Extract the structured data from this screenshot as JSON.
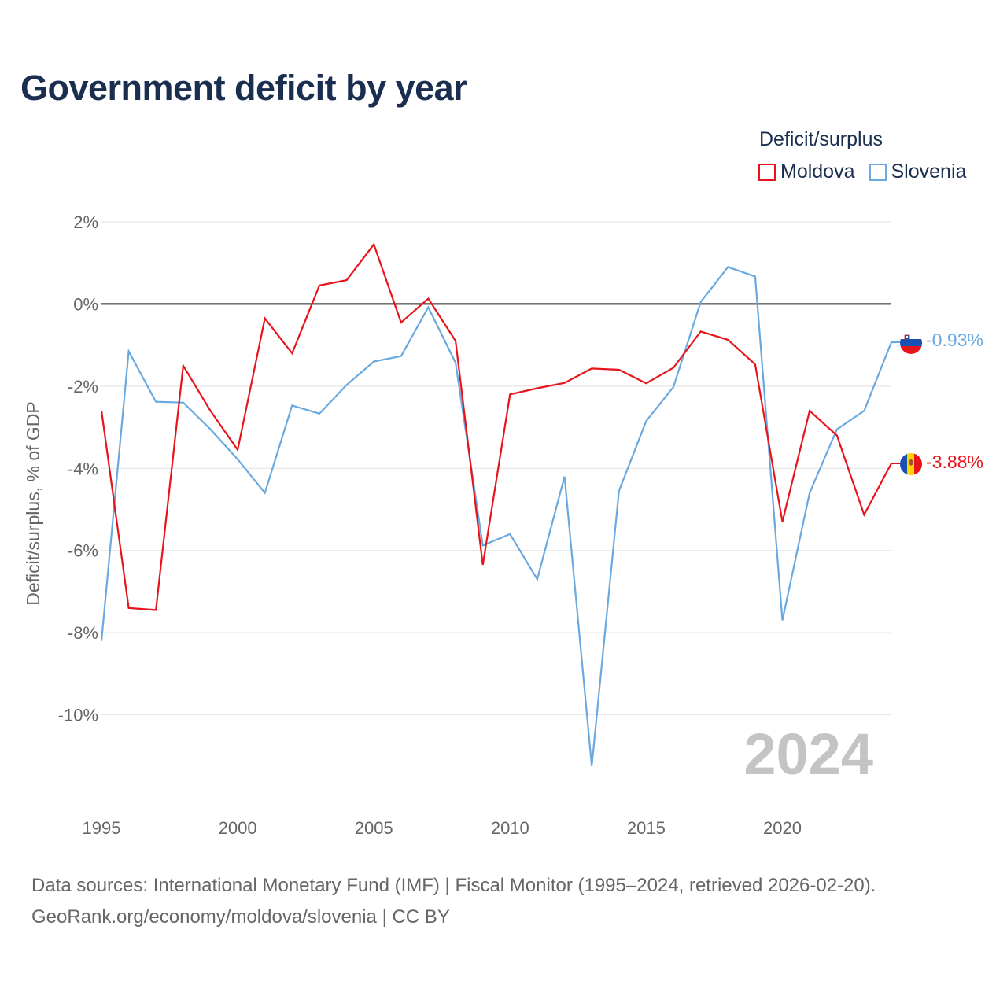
{
  "title": "Government deficit by year",
  "legend": {
    "title": "Deficit/surplus",
    "items": [
      {
        "label": "Moldova",
        "color": "#e8141b"
      },
      {
        "label": "Slovenia",
        "color": "#6aa9e0"
      }
    ]
  },
  "year_watermark": "2024",
  "footer": {
    "line1": "Data sources: International Monetary Fund (IMF) | Fiscal Monitor (1995–2024, retrieved 2026-02-20).",
    "line2": "GeoRank.org/economy/moldova/slovenia | CC BY"
  },
  "chart_data": {
    "type": "line",
    "title": "Government deficit by year",
    "xlabel": "",
    "ylabel": "Deficit/surplus, % of GDP",
    "x": [
      1995,
      1996,
      1997,
      1998,
      1999,
      2000,
      2001,
      2002,
      2003,
      2004,
      2005,
      2006,
      2007,
      2008,
      2009,
      2010,
      2011,
      2012,
      2013,
      2014,
      2015,
      2016,
      2017,
      2018,
      2019,
      2020,
      2021,
      2022,
      2023,
      2024
    ],
    "xlim": [
      1995,
      2024
    ],
    "ylim": [
      -12,
      2
    ],
    "x_ticks": [
      1995,
      2000,
      2005,
      2010,
      2015,
      2020
    ],
    "y_ticks": [
      2,
      0,
      -2,
      -4,
      -6,
      -8,
      -10
    ],
    "y_tick_labels": [
      "2%",
      "0%",
      "-2%",
      "-4%",
      "-6%",
      "-8%",
      "-10%"
    ],
    "grid": true,
    "legend_position": "top-right",
    "series": [
      {
        "name": "Moldova",
        "color": "#e8141b",
        "end_label": "-3.88%",
        "values": [
          -2.6,
          -7.4,
          -7.45,
          -1.5,
          -2.6,
          -3.55,
          -0.35,
          -1.2,
          0.45,
          0.58,
          1.45,
          -0.45,
          0.13,
          -0.9,
          -6.35,
          -2.2,
          -2.05,
          -1.92,
          -1.57,
          -1.6,
          -1.93,
          -1.55,
          -0.67,
          -0.87,
          -1.47,
          -5.3,
          -2.6,
          -3.2,
          -5.13,
          -3.88
        ]
      },
      {
        "name": "Slovenia",
        "color": "#6aa9e0",
        "end_label": "-0.93%",
        "values": [
          -8.2,
          -1.15,
          -2.38,
          -2.4,
          -3.05,
          -3.78,
          -4.6,
          -2.47,
          -2.67,
          -1.97,
          -1.4,
          -1.27,
          -0.08,
          -1.43,
          -5.88,
          -5.6,
          -6.7,
          -4.2,
          -11.25,
          -4.55,
          -2.85,
          -2.02,
          0.05,
          0.9,
          0.67,
          -7.7,
          -4.6,
          -3.05,
          -2.6,
          -0.93
        ]
      }
    ]
  }
}
